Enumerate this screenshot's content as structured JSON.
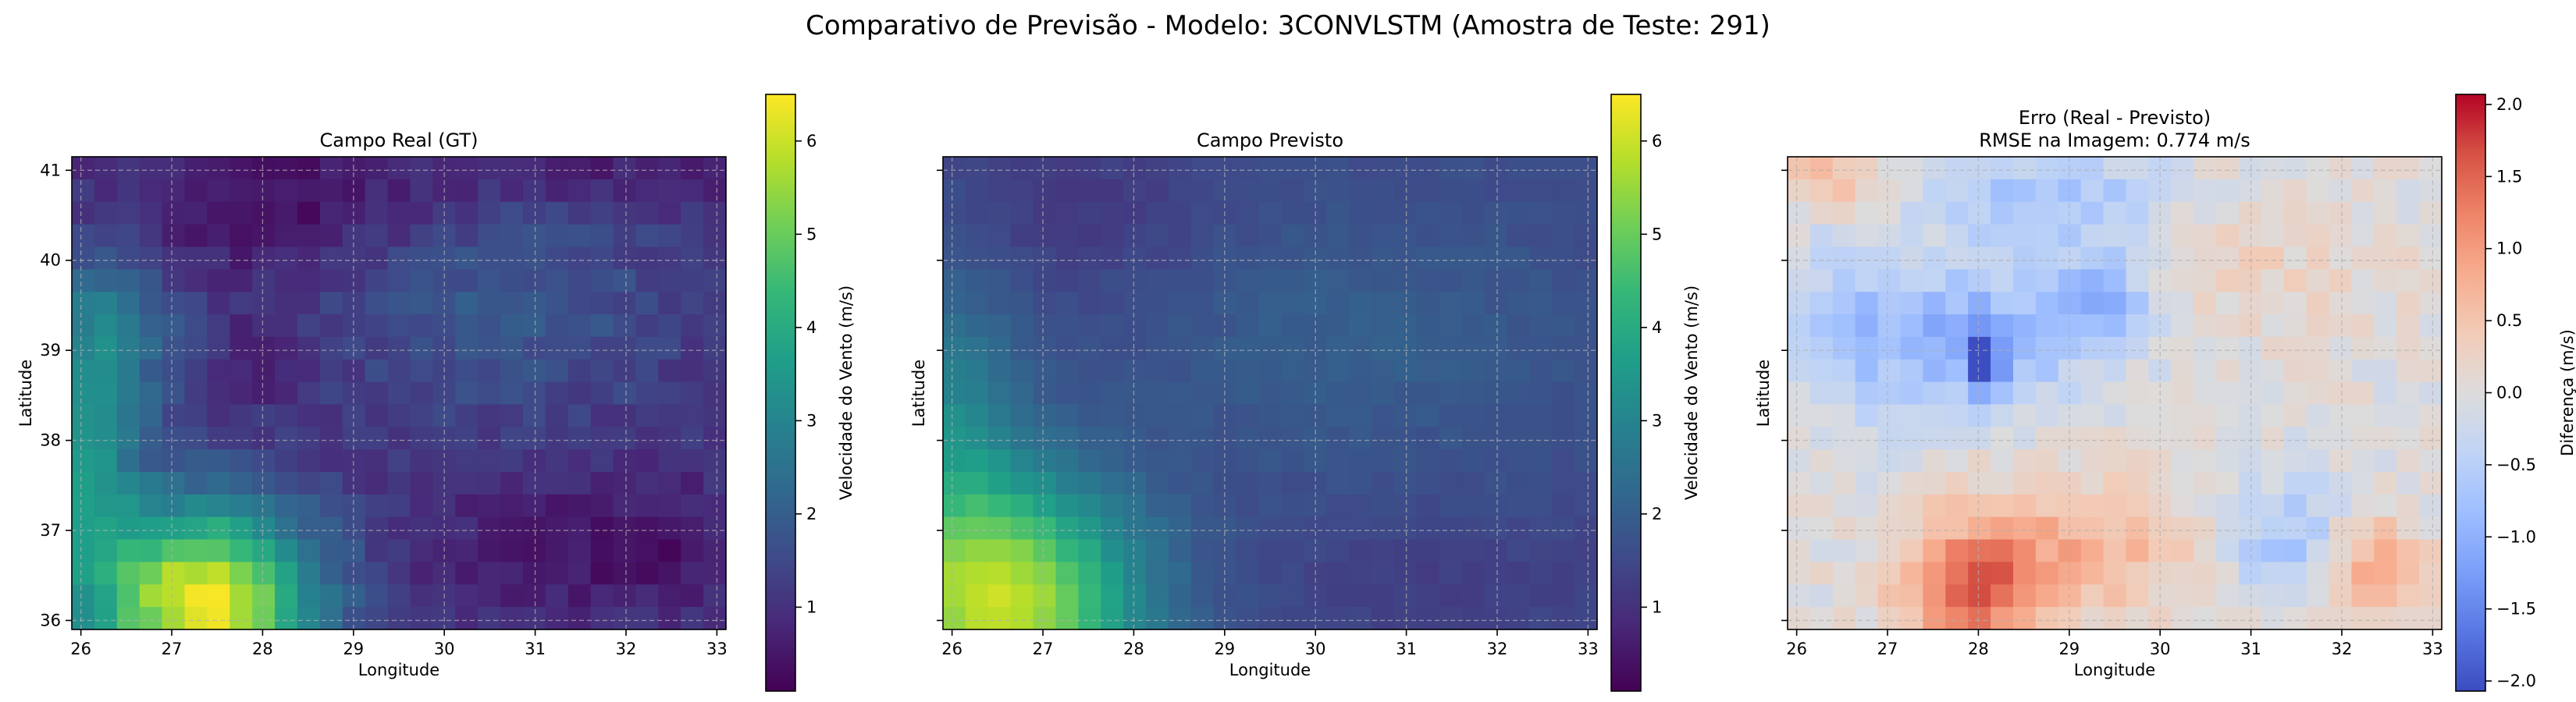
{
  "figure": {
    "suptitle": "Comparativo de Previsão - Modelo: 3CONVLSTM (Amostra de Teste: 291)"
  },
  "colors": {
    "viridis": [
      "#440154",
      "#482878",
      "#3e4a89",
      "#31688e",
      "#26828e",
      "#1f9e89",
      "#35b779",
      "#6ece58",
      "#b5de2b",
      "#fde725"
    ],
    "coolwarm": [
      "#3b4cc0",
      "#5977e3",
      "#7b9ff9",
      "#9ebeff",
      "#c0d4f5",
      "#dddcdc",
      "#f2cbb7",
      "#f7ac8e",
      "#ee8468",
      "#d65244",
      "#b40426"
    ],
    "grid": "#b0b0b0"
  },
  "chart_data": [
    {
      "type": "heatmap",
      "title": "Campo Real (GT)",
      "xlabel": "Longitude",
      "ylabel": "Latitude",
      "x_ticks": [
        "26",
        "27",
        "28",
        "29",
        "30",
        "31",
        "32",
        "33"
      ],
      "y_ticks": [
        "36",
        "37",
        "38",
        "39",
        "40",
        "41"
      ],
      "xlim": [
        25.9,
        33.1
      ],
      "ylim": [
        35.9,
        41.15
      ],
      "grid": true,
      "colormap": "viridis",
      "colorbar_label": "Velocidade do Vento (m/s)",
      "colorbar_ticks": [
        "1",
        "2",
        "3",
        "4",
        "5",
        "6"
      ],
      "vmin": 0.1,
      "vmax": 6.5,
      "grid_size": [
        29,
        21
      ],
      "field": "actual"
    },
    {
      "type": "heatmap",
      "title": "Campo Previsto",
      "xlabel": "Longitude",
      "ylabel": "Latitude",
      "x_ticks": [
        "26",
        "27",
        "28",
        "29",
        "30",
        "31",
        "32",
        "33"
      ],
      "y_ticks": [],
      "xlim": [
        25.9,
        33.1
      ],
      "ylim": [
        35.9,
        41.15
      ],
      "grid": true,
      "colormap": "viridis",
      "colorbar_label": "Velocidade do Vento (m/s)",
      "colorbar_ticks": [
        "1",
        "2",
        "3",
        "4",
        "5",
        "6"
      ],
      "vmin": 0.1,
      "vmax": 6.5,
      "grid_size": [
        29,
        21
      ],
      "field": "predicted"
    },
    {
      "type": "heatmap",
      "title": "Erro (Real - Previsto)",
      "subtitle": "RMSE na Imagem: 0.774 m/s",
      "xlabel": "Longitude",
      "ylabel": "Latitude",
      "x_ticks": [
        "26",
        "27",
        "28",
        "29",
        "30",
        "31",
        "32",
        "33"
      ],
      "y_ticks": [],
      "xlim": [
        25.9,
        33.1
      ],
      "ylim": [
        35.9,
        41.15
      ],
      "grid": true,
      "colormap": "coolwarm",
      "colorbar_label": "Diferença (m/s)",
      "colorbar_ticks": [
        "−2.0",
        "−1.5",
        "−1.0",
        "−0.5",
        "0.0",
        "0.5",
        "1.0",
        "1.5",
        "2.0"
      ],
      "vmin": -2.07,
      "vmax": 2.07,
      "grid_size": [
        29,
        21
      ],
      "field": "error"
    }
  ]
}
